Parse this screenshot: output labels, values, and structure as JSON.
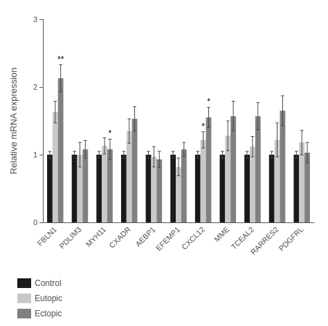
{
  "chart_data": {
    "type": "bar",
    "categories": [
      "FBLN1",
      "PDLIM3",
      "MYH11",
      "CXADR",
      "AEBP1",
      "EFEMP1",
      "CXCL12",
      "MME",
      "TCEAL2",
      "RARRES2",
      "PDGFRL"
    ],
    "series": [
      {
        "name": "Control",
        "color": "#1a1a1a",
        "values": [
          1.0,
          1.0,
          1.0,
          1.0,
          1.0,
          1.0,
          1.0,
          1.0,
          1.0,
          1.0,
          1.0
        ],
        "errors": [
          0.05,
          0.05,
          0.05,
          0.05,
          0.05,
          0.05,
          0.05,
          0.05,
          0.05,
          0.05,
          0.05
        ]
      },
      {
        "name": "Eutopic",
        "color": "#c8c8c8",
        "values": [
          1.63,
          1.0,
          1.13,
          1.35,
          0.97,
          0.82,
          1.22,
          1.28,
          1.12,
          1.22,
          1.18
        ],
        "errors": [
          0.16,
          0.18,
          0.12,
          0.18,
          0.15,
          0.13,
          0.12,
          0.22,
          0.15,
          0.25,
          0.18
        ]
      },
      {
        "name": "Ectopic",
        "color": "#808080",
        "values": [
          2.13,
          1.08,
          1.08,
          1.53,
          0.93,
          1.08,
          1.55,
          1.57,
          1.57,
          1.65,
          1.03
        ],
        "errors": [
          0.2,
          0.13,
          0.15,
          0.18,
          0.12,
          0.1,
          0.15,
          0.22,
          0.2,
          0.22,
          0.15
        ]
      }
    ],
    "annotations": [
      {
        "label": "**",
        "category": "FBLN1",
        "series": "Ectopic"
      },
      {
        "label": "*",
        "category": "MYH11",
        "series": "Ectopic"
      },
      {
        "label": "*",
        "category": "CXCL12",
        "series": "Eutopic"
      },
      {
        "label": "*",
        "category": "CXCL12",
        "series": "Ectopic"
      }
    ],
    "ylabel": "Relative mRNA expression",
    "ylim": [
      0,
      3.0
    ],
    "yticks": [
      0,
      1,
      2,
      3
    ],
    "grid": false,
    "legend": "lower left"
  }
}
